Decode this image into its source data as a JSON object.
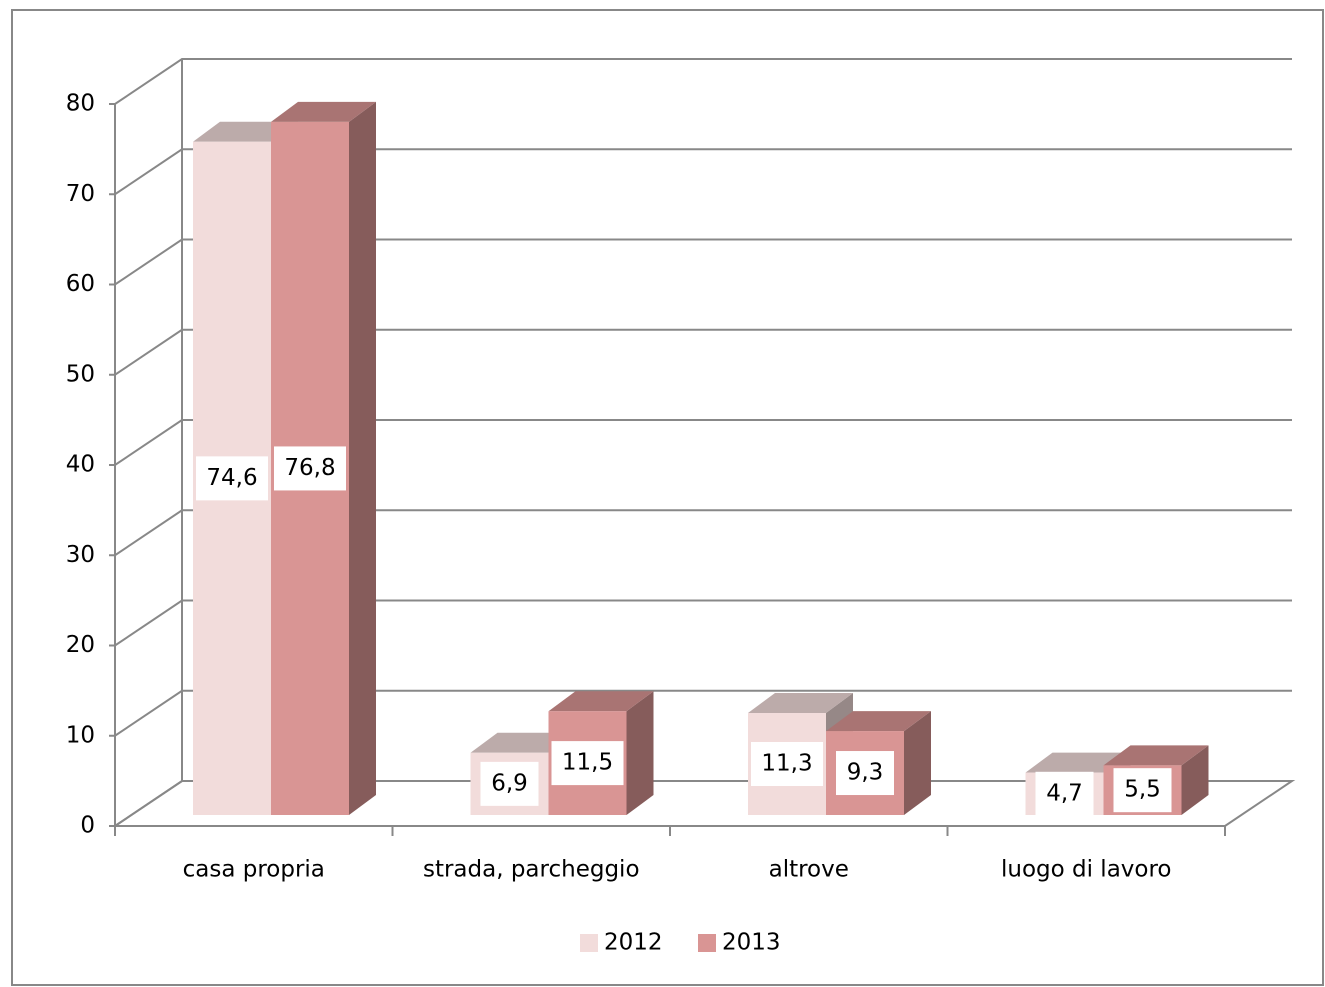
{
  "chart_data": {
    "type": "bar3d",
    "categories": [
      "casa propria",
      "strada, parcheggio",
      "altrove",
      "luogo di lavoro"
    ],
    "series": [
      {
        "name": "2012",
        "color": "#f2dcdb",
        "values": [
          74.6,
          6.9,
          11.3,
          4.7
        ],
        "value_labels": [
          "74,6",
          "6,9",
          "11,3",
          "4,7"
        ]
      },
      {
        "name": "2013",
        "color": "#d99594",
        "values": [
          76.8,
          11.5,
          9.3,
          5.5
        ],
        "value_labels": [
          "76,8",
          "11,5",
          "9,3",
          "5,5"
        ]
      }
    ],
    "ylim": [
      0,
      80
    ],
    "yticks": [
      0,
      10,
      20,
      30,
      40,
      50,
      60,
      70,
      80
    ],
    "grid": true,
    "legend": "bottom"
  }
}
